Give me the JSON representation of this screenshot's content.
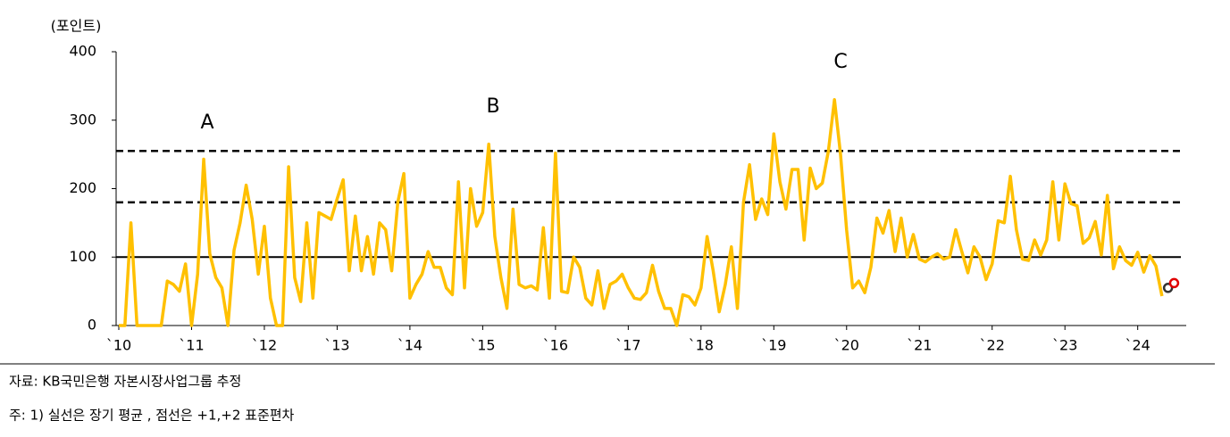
{
  "chart_data": {
    "type": "line",
    "y_label": "(포인트)",
    "ylim": [
      0,
      400
    ],
    "yticks": [
      0,
      100,
      200,
      300,
      400
    ],
    "xlim": [
      0,
      176
    ],
    "xticks": [
      {
        "value": 0,
        "label": "`10"
      },
      {
        "value": 12,
        "label": "`11"
      },
      {
        "value": 24,
        "label": "`12"
      },
      {
        "value": 36,
        "label": "`13"
      },
      {
        "value": 48,
        "label": "`14"
      },
      {
        "value": 60,
        "label": "`15"
      },
      {
        "value": 72,
        "label": "`16"
      },
      {
        "value": 84,
        "label": "`17"
      },
      {
        "value": 96,
        "label": "`18"
      },
      {
        "value": 108,
        "label": "`19"
      },
      {
        "value": 120,
        "label": "`20"
      },
      {
        "value": 132,
        "label": "`21"
      },
      {
        "value": 144,
        "label": "`22"
      },
      {
        "value": 156,
        "label": "`23"
      },
      {
        "value": 168,
        "label": "`24"
      }
    ],
    "series": [
      {
        "color": "#FFC000",
        "x": [
          0,
          1,
          2,
          3,
          4,
          5,
          6,
          7,
          8,
          9,
          10,
          11,
          12,
          13,
          14,
          15,
          16,
          17,
          18,
          19,
          20,
          21,
          22,
          23,
          24,
          25,
          26,
          27,
          28,
          29,
          30,
          31,
          32,
          33,
          34,
          35,
          36,
          37,
          38,
          39,
          40,
          41,
          42,
          43,
          44,
          45,
          46,
          47,
          48,
          49,
          50,
          51,
          52,
          53,
          54,
          55,
          56,
          57,
          58,
          59,
          60,
          61,
          62,
          63,
          64,
          65,
          66,
          67,
          68,
          69,
          70,
          71,
          72,
          73,
          74,
          75,
          76,
          77,
          78,
          79,
          80,
          81,
          82,
          83,
          84,
          85,
          86,
          87,
          88,
          89,
          90,
          91,
          92,
          93,
          94,
          95,
          96,
          97,
          98,
          99,
          100,
          101,
          102,
          103,
          104,
          105,
          106,
          107,
          108,
          109,
          110,
          111,
          112,
          113,
          114,
          115,
          116,
          117,
          118,
          119,
          120,
          121,
          122,
          123,
          124,
          125,
          126,
          127,
          128,
          129,
          130,
          131,
          132,
          133,
          134,
          135,
          136,
          137,
          138,
          139,
          140,
          141,
          142,
          143,
          144,
          145,
          146,
          147,
          148,
          149,
          150,
          151,
          152,
          153,
          154,
          155,
          156,
          157,
          158,
          159,
          160,
          161,
          162,
          163,
          164,
          165,
          166,
          167,
          168,
          169,
          170,
          171,
          172
        ],
        "values": [
          0,
          0,
          150,
          0,
          0,
          0,
          0,
          0,
          65,
          60,
          50,
          90,
          0,
          75,
          243,
          105,
          70,
          55,
          0,
          110,
          150,
          205,
          155,
          75,
          145,
          40,
          0,
          0,
          232,
          70,
          35,
          150,
          40,
          165,
          160,
          155,
          185,
          213,
          80,
          160,
          80,
          130,
          75,
          150,
          140,
          80,
          180,
          222,
          40,
          60,
          75,
          108,
          85,
          85,
          55,
          45,
          210,
          55,
          200,
          145,
          165,
          265,
          130,
          70,
          25,
          170,
          60,
          55,
          58,
          52,
          143,
          40,
          252,
          50,
          48,
          100,
          85,
          40,
          30,
          80,
          25,
          60,
          65,
          75,
          55,
          40,
          38,
          48,
          88,
          50,
          25,
          25,
          0,
          45,
          42,
          30,
          55,
          130,
          80,
          20,
          60,
          115,
          25,
          180,
          235,
          155,
          185,
          162,
          280,
          210,
          170,
          228,
          228,
          125,
          230,
          200,
          208,
          255,
          330,
          250,
          140,
          55,
          65,
          48,
          85,
          157,
          135,
          168,
          108,
          157,
          100,
          133,
          97,
          93,
          100,
          105,
          97,
          100,
          140,
          108,
          77,
          115,
          100,
          67,
          90,
          153,
          150,
          218,
          140,
          97,
          95,
          125,
          103,
          125,
          210,
          125,
          207,
          178,
          175,
          120,
          128,
          152,
          103,
          190,
          83,
          115,
          95,
          88,
          107,
          78,
          102,
          87,
          43
        ]
      },
      {
        "type": "scatter",
        "color": "#333333",
        "x": [
          173
        ],
        "values": [
          55
        ]
      },
      {
        "type": "scatter",
        "color": "#e00000",
        "x": [
          174
        ],
        "values": [
          62
        ]
      }
    ],
    "reference_lines": [
      {
        "value": 100,
        "style": "solid"
      },
      {
        "value": 180,
        "style": "dashed"
      },
      {
        "value": 255,
        "style": "dashed"
      }
    ],
    "annotations": [
      "A",
      "B",
      "C"
    ],
    "source": "자료: KB국민은행 자본시장사업그룹 추정",
    "note": "주: 1) 실선은 장기 평균 , 점선은 +1,+2 표준편차"
  }
}
